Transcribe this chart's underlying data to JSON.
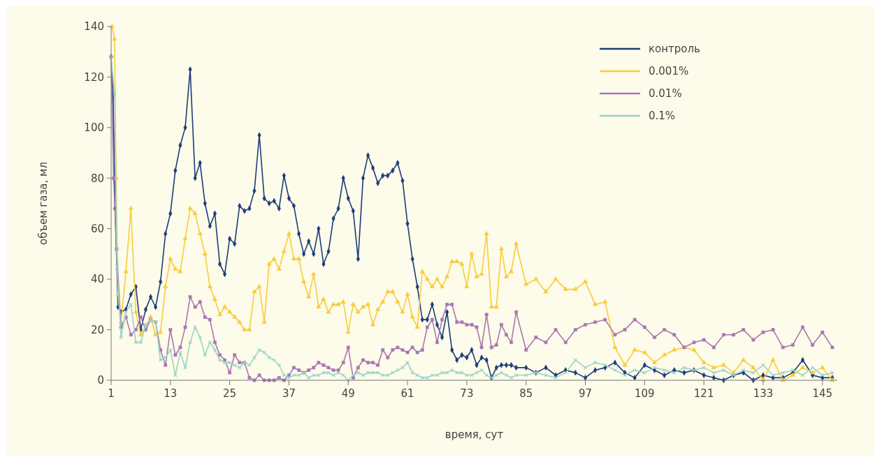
{
  "chart_data": {
    "type": "line",
    "xlabel": "время, сут",
    "ylabel": "объем газа, мл",
    "xlim": [
      1,
      148
    ],
    "xticks": [
      1,
      13,
      25,
      37,
      49,
      61,
      73,
      85,
      97,
      109,
      121,
      133,
      145
    ],
    "ylim": [
      0,
      140
    ],
    "yticks": [
      0,
      20,
      40,
      60,
      80,
      100,
      120,
      140
    ],
    "legend": "top right",
    "grid": false,
    "series": [
      {
        "name": "контроль",
        "color": "#1d3c7a",
        "marker": "diamond",
        "x": [
          1,
          1.4,
          1.8,
          2.4,
          3,
          4,
          5,
          6,
          7,
          8,
          9,
          10,
          11,
          12,
          13,
          14,
          15,
          16,
          17,
          18,
          19,
          20,
          21,
          22,
          23,
          24,
          25,
          26,
          27,
          28,
          29,
          30,
          31,
          32,
          33,
          34,
          35,
          36,
          37,
          38,
          39,
          40,
          41,
          42,
          43,
          44,
          45,
          46,
          47,
          48,
          49,
          50,
          51,
          52,
          53,
          54,
          55,
          56,
          57,
          58,
          59,
          60,
          61,
          62,
          63,
          64,
          65,
          66,
          67,
          68,
          69,
          70,
          71,
          72,
          73,
          74,
          75,
          76,
          77,
          78,
          79,
          80,
          81,
          82,
          83,
          85,
          87,
          89,
          91,
          93,
          95,
          97,
          99,
          101,
          103,
          105,
          107,
          109,
          111,
          113,
          115,
          117,
          119,
          121,
          123,
          125,
          127,
          129,
          131,
          133,
          135,
          137,
          139,
          141,
          143,
          145,
          147
        ],
        "values": [
          128,
          113,
          68,
          29,
          27,
          28,
          34,
          37,
          20,
          28,
          33,
          29,
          39,
          58,
          66,
          83,
          93,
          100,
          123,
          80,
          86,
          70,
          61,
          66,
          46,
          42,
          56,
          54,
          69,
          67,
          68,
          75,
          97,
          72,
          70,
          71,
          68,
          81,
          72,
          69,
          58,
          50,
          55,
          50,
          60,
          46,
          51,
          64,
          68,
          80,
          72,
          67,
          48,
          80,
          89,
          84,
          78,
          81,
          81,
          83,
          86,
          79,
          62,
          48,
          37,
          24,
          24,
          30,
          22,
          17,
          27,
          12,
          8,
          10,
          9,
          12,
          6,
          9,
          8,
          1,
          5,
          6,
          6,
          6,
          5,
          5,
          3,
          5,
          2,
          4,
          3,
          1,
          4,
          5,
          7,
          3,
          1,
          6,
          4,
          2,
          4,
          3,
          4,
          2,
          1,
          0,
          2,
          3,
          0,
          2,
          1,
          1,
          3,
          8,
          2,
          1,
          1
        ]
      },
      {
        "name": "0.001%",
        "color": "#f7cd3c",
        "marker": "triangle",
        "x": [
          1.2,
          1.7,
          2,
          2.4,
          3,
          4,
          5,
          6,
          7,
          8,
          9,
          10,
          11,
          12,
          13,
          14,
          15,
          16,
          17,
          18,
          19,
          20,
          21,
          22,
          23,
          24,
          25,
          26,
          27,
          28,
          29,
          30,
          31,
          32,
          33,
          34,
          35,
          36,
          37,
          38,
          39,
          40,
          41,
          42,
          43,
          44,
          45,
          46,
          47,
          48,
          49,
          50,
          51,
          52,
          53,
          54,
          55,
          56,
          57,
          58,
          59,
          60,
          61,
          62,
          63,
          64,
          65,
          66,
          67,
          68,
          69,
          70,
          71,
          72,
          73,
          74,
          75,
          76,
          77,
          78,
          79,
          80,
          81,
          82,
          83,
          85,
          87,
          89,
          91,
          93,
          95,
          97,
          99,
          101,
          103,
          105,
          107,
          109,
          111,
          113,
          115,
          117,
          119,
          121,
          123,
          125,
          127,
          129,
          131,
          133,
          135,
          137,
          139,
          141,
          143,
          145,
          147
        ],
        "values": [
          140,
          135,
          80,
          34,
          23,
          43,
          68,
          27,
          18,
          21,
          25,
          18,
          19,
          37,
          48,
          44,
          43,
          56,
          68,
          66,
          58,
          50,
          37,
          32,
          26,
          29,
          27,
          25,
          23,
          20,
          20,
          35,
          37,
          23,
          46,
          48,
          44,
          51,
          58,
          48,
          48,
          39,
          33,
          42,
          29,
          32,
          27,
          30,
          30,
          31,
          19,
          30,
          27,
          29,
          30,
          22,
          28,
          31,
          35,
          35,
          31,
          27,
          34,
          25,
          21,
          43,
          40,
          37,
          40,
          37,
          41,
          47,
          47,
          46,
          37,
          50,
          41,
          42,
          58,
          29,
          29,
          52,
          41,
          43,
          54,
          38,
          40,
          35,
          40,
          36,
          36,
          39,
          30,
          31,
          13,
          6,
          12,
          11,
          7,
          10,
          12,
          13,
          12,
          7,
          5,
          6,
          3,
          8,
          5,
          0,
          8,
          0,
          2,
          5,
          3,
          5,
          0
        ]
      },
      {
        "name": "0.01%",
        "color": "#a877b4",
        "marker": "square",
        "x": [
          1,
          1.5,
          2.1,
          3,
          4,
          5,
          6,
          7,
          8,
          9,
          10,
          11,
          12,
          13,
          14,
          15,
          16,
          17,
          18,
          19,
          20,
          21,
          22,
          23,
          24,
          25,
          26,
          27,
          28,
          29,
          30,
          31,
          32,
          33,
          34,
          35,
          36,
          37,
          38,
          39,
          40,
          41,
          42,
          43,
          44,
          45,
          46,
          47,
          48,
          49,
          50,
          51,
          52,
          53,
          54,
          55,
          56,
          57,
          58,
          59,
          60,
          61,
          62,
          63,
          64,
          65,
          66,
          67,
          68,
          69,
          70,
          71,
          72,
          73,
          74,
          75,
          76,
          77,
          78,
          79,
          80,
          81,
          82,
          83,
          85,
          87,
          89,
          91,
          93,
          95,
          97,
          99,
          101,
          103,
          105,
          107,
          109,
          111,
          113,
          115,
          117,
          119,
          121,
          123,
          125,
          127,
          129,
          131,
          133,
          135,
          137,
          139,
          141,
          143,
          145,
          147
        ],
        "values": [
          128,
          80,
          52,
          21,
          25,
          18,
          20,
          25,
          20,
          24,
          23,
          12,
          6,
          20,
          10,
          13,
          21,
          33,
          29,
          31,
          25,
          24,
          15,
          10,
          8,
          3,
          10,
          7,
          7,
          1,
          0,
          2,
          0,
          0,
          0,
          1,
          0,
          2,
          5,
          4,
          3,
          4,
          5,
          7,
          6,
          5,
          4,
          4,
          7,
          13,
          1,
          5,
          8,
          7,
          7,
          6,
          12,
          9,
          12,
          13,
          12,
          11,
          13,
          11,
          12,
          21,
          24,
          15,
          24,
          30,
          30,
          23,
          23,
          22,
          22,
          21,
          13,
          26,
          13,
          14,
          22,
          18,
          15,
          27,
          12,
          17,
          15,
          20,
          15,
          20,
          22,
          23,
          24,
          18,
          20,
          24,
          21,
          17,
          20,
          18,
          13,
          15,
          16,
          13,
          18,
          18,
          20,
          16,
          19,
          20,
          13,
          14,
          21,
          14,
          19,
          13
        ]
      },
      {
        "name": "0.1%",
        "color": "#9bd4c9",
        "marker": "cross",
        "x": [
          1,
          1.7,
          2.2,
          3,
          4,
          5,
          6,
          7,
          8,
          9,
          10,
          11,
          12,
          13,
          14,
          15,
          16,
          17,
          18,
          19,
          20,
          21,
          22,
          23,
          24,
          25,
          26,
          27,
          28,
          29,
          30,
          31,
          32,
          33,
          34,
          35,
          36,
          37,
          38,
          39,
          40,
          41,
          42,
          43,
          44,
          45,
          46,
          47,
          48,
          49,
          50,
          51,
          52,
          53,
          54,
          55,
          56,
          57,
          58,
          59,
          60,
          61,
          62,
          63,
          64,
          65,
          66,
          67,
          68,
          69,
          70,
          71,
          72,
          73,
          74,
          75,
          76,
          77,
          78,
          79,
          80,
          81,
          82,
          83,
          85,
          87,
          89,
          91,
          93,
          95,
          97,
          99,
          101,
          103,
          105,
          107,
          109,
          111,
          113,
          115,
          117,
          119,
          121,
          123,
          125,
          127,
          129,
          131,
          133,
          135,
          137,
          139,
          141,
          143,
          145,
          147
        ],
        "values": [
          128,
          113,
          45,
          17,
          27,
          30,
          15,
          15,
          22,
          24,
          23,
          8,
          9,
          12,
          2,
          11,
          5,
          15,
          21,
          17,
          10,
          15,
          12,
          8,
          7,
          7,
          6,
          5,
          7,
          6,
          9,
          12,
          11,
          9,
          8,
          6,
          2,
          1,
          2,
          2,
          3,
          1,
          2,
          2,
          3,
          3,
          2,
          3,
          2,
          0,
          2,
          3,
          2,
          3,
          3,
          3,
          2,
          2,
          3,
          4,
          5,
          7,
          3,
          2,
          1,
          1,
          2,
          2,
          3,
          3,
          4,
          3,
          3,
          2,
          2,
          3,
          4,
          2,
          1,
          2,
          3,
          2,
          1,
          2,
          2,
          3,
          2,
          1,
          3,
          8,
          5,
          7,
          6,
          4,
          2,
          4,
          3,
          5,
          4,
          3,
          5,
          4,
          5,
          3,
          4,
          2,
          4,
          3,
          6,
          2,
          3,
          4,
          2,
          5,
          2,
          3
        ]
      }
    ]
  }
}
